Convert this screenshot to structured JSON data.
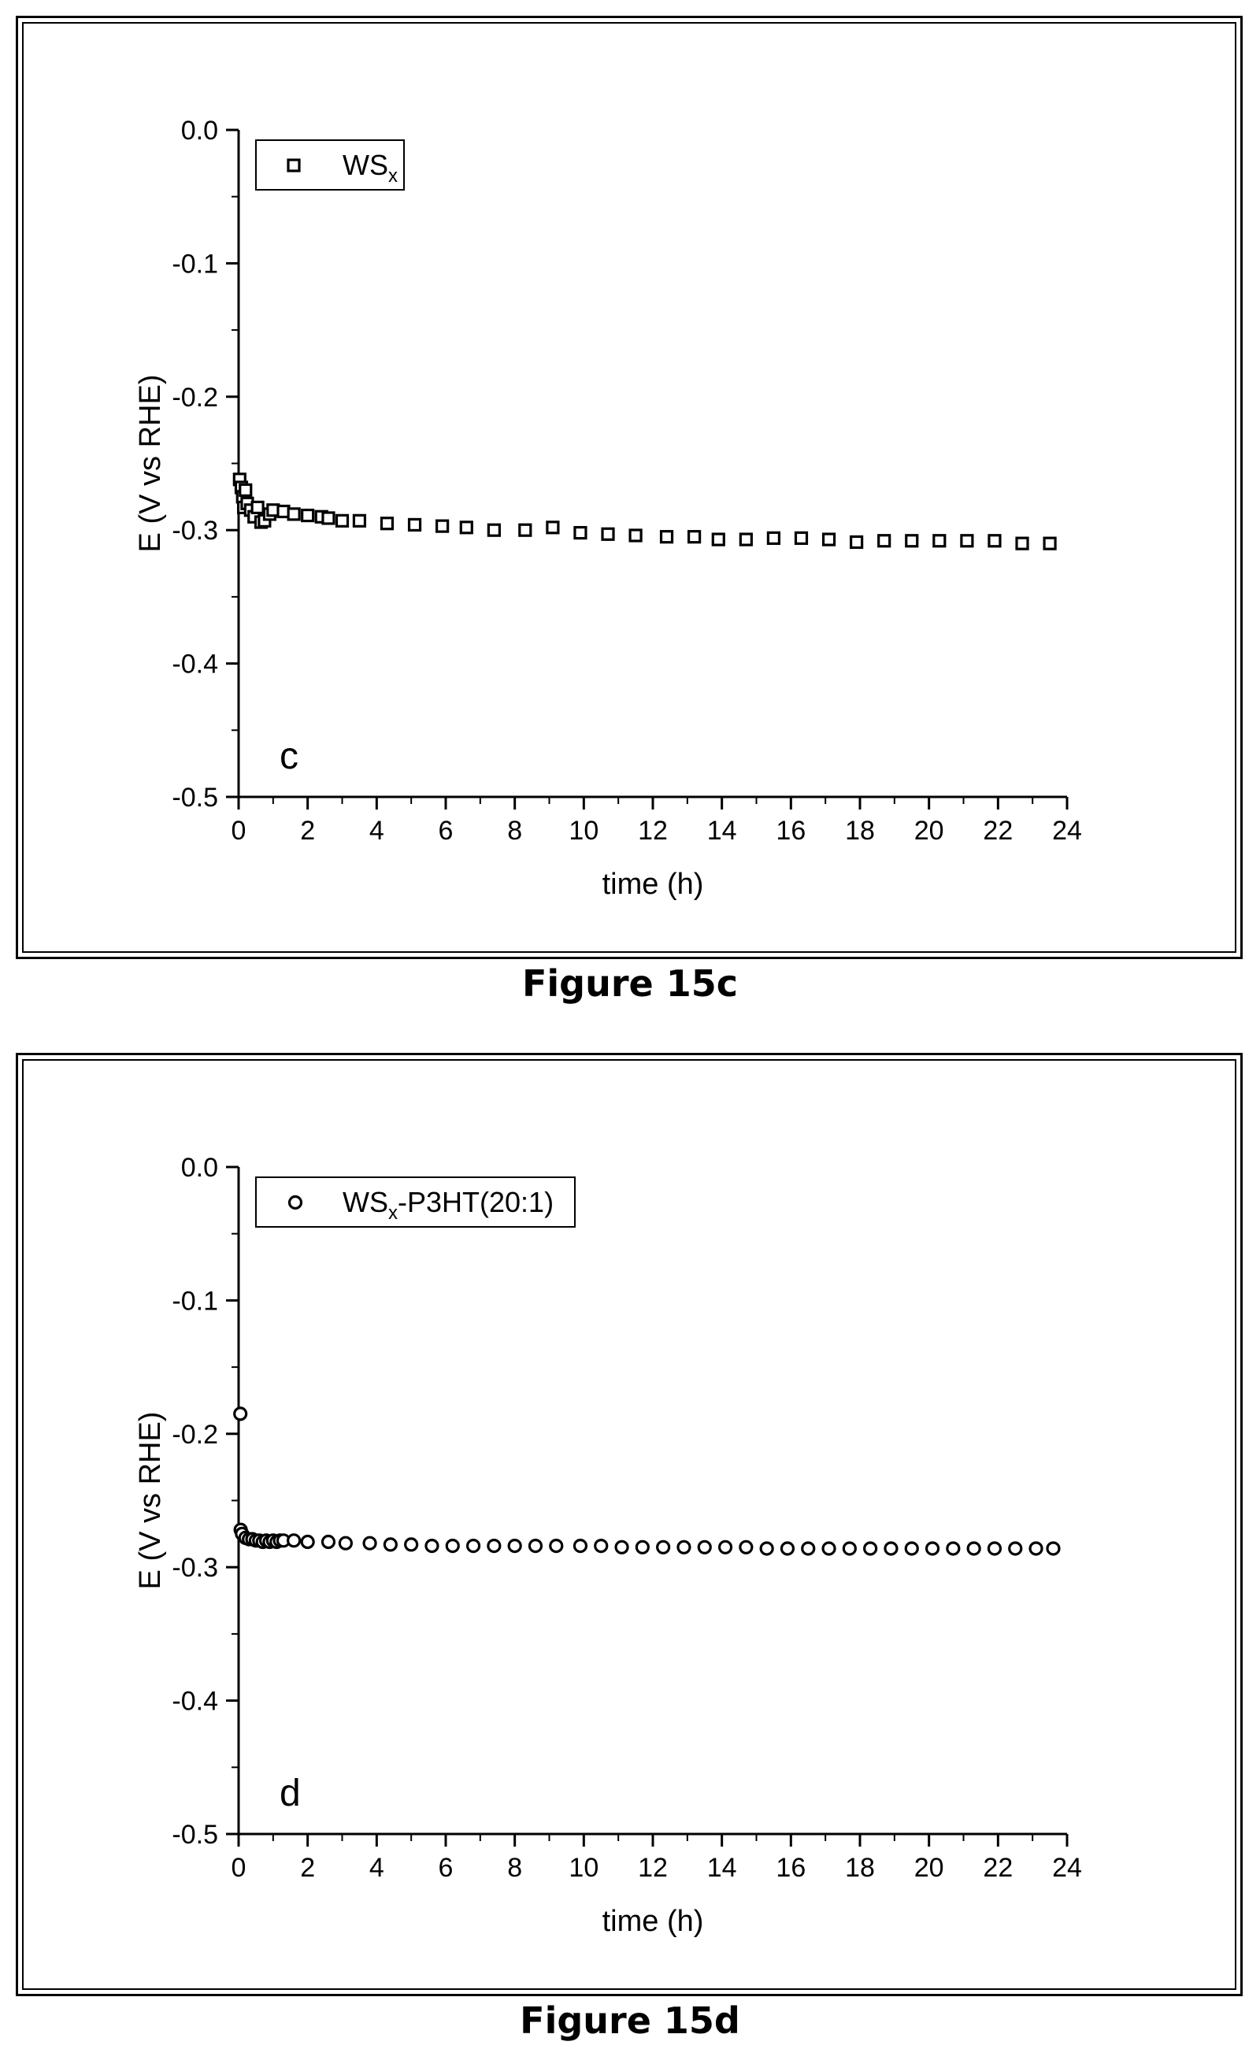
{
  "figures": [
    {
      "caption": "Figure 15c",
      "chart_data": {
        "type": "scatter",
        "panel_label": "c",
        "xlabel": "time (h)",
        "ylabel": "E (V vs RHE)",
        "xlim": [
          0,
          24
        ],
        "ylim": [
          -0.5,
          0.0
        ],
        "xticks": [
          "0",
          "2",
          "4",
          "6",
          "8",
          "10",
          "12",
          "14",
          "16",
          "18",
          "20",
          "22",
          "24"
        ],
        "yticks": [
          "0.0",
          "-0.1",
          "-0.2",
          "-0.3",
          "-0.4",
          "-0.5"
        ],
        "legend_position": "top-left",
        "series": [
          {
            "name": "WSx",
            "name_main": "WS",
            "name_sub": "x",
            "marker": "square",
            "points": [
              [
                0.03,
                -0.262
              ],
              [
                0.08,
                -0.268
              ],
              [
                0.12,
                -0.275
              ],
              [
                0.15,
                -0.283
              ],
              [
                0.2,
                -0.27
              ],
              [
                0.25,
                -0.28
              ],
              [
                0.35,
                -0.285
              ],
              [
                0.45,
                -0.29
              ],
              [
                0.55,
                -0.283
              ],
              [
                0.65,
                -0.294
              ],
              [
                0.75,
                -0.293
              ],
              [
                0.9,
                -0.288
              ],
              [
                1.0,
                -0.285
              ],
              [
                1.3,
                -0.286
              ],
              [
                1.6,
                -0.288
              ],
              [
                2.0,
                -0.289
              ],
              [
                2.4,
                -0.29
              ],
              [
                2.6,
                -0.291
              ],
              [
                3.0,
                -0.293
              ],
              [
                3.5,
                -0.293
              ],
              [
                4.3,
                -0.295
              ],
              [
                5.1,
                -0.296
              ],
              [
                5.9,
                -0.297
              ],
              [
                6.6,
                -0.298
              ],
              [
                7.4,
                -0.3
              ],
              [
                8.3,
                -0.3
              ],
              [
                9.1,
                -0.298
              ],
              [
                9.9,
                -0.302
              ],
              [
                10.7,
                -0.303
              ],
              [
                11.5,
                -0.304
              ],
              [
                12.4,
                -0.305
              ],
              [
                13.2,
                -0.305
              ],
              [
                13.9,
                -0.307
              ],
              [
                14.7,
                -0.307
              ],
              [
                15.5,
                -0.306
              ],
              [
                16.3,
                -0.306
              ],
              [
                17.1,
                -0.307
              ],
              [
                17.9,
                -0.309
              ],
              [
                18.7,
                -0.308
              ],
              [
                19.5,
                -0.308
              ],
              [
                20.3,
                -0.308
              ],
              [
                21.1,
                -0.308
              ],
              [
                21.9,
                -0.308
              ],
              [
                22.7,
                -0.31
              ],
              [
                23.5,
                -0.31
              ]
            ]
          }
        ]
      }
    },
    {
      "caption": "Figure 15d",
      "chart_data": {
        "type": "scatter",
        "panel_label": "d",
        "xlabel": "time (h)",
        "ylabel": "E (V vs RHE)",
        "xlim": [
          0,
          24
        ],
        "ylim": [
          -0.5,
          0.0
        ],
        "xticks": [
          "0",
          "2",
          "4",
          "6",
          "8",
          "10",
          "12",
          "14",
          "16",
          "18",
          "20",
          "22",
          "24"
        ],
        "yticks": [
          "0.0",
          "-0.1",
          "-0.2",
          "-0.3",
          "-0.4",
          "-0.5"
        ],
        "legend_position": "top-left",
        "series": [
          {
            "name": "WSx-P3HT(20:1)",
            "name_main": "WS",
            "name_sub": "x",
            "name_tail": "-P3HT(20:1)",
            "marker": "circle",
            "points": [
              [
                0.05,
                -0.185
              ],
              [
                0.06,
                -0.272
              ],
              [
                0.1,
                -0.275
              ],
              [
                0.2,
                -0.278
              ],
              [
                0.3,
                -0.279
              ],
              [
                0.4,
                -0.279
              ],
              [
                0.5,
                -0.28
              ],
              [
                0.6,
                -0.28
              ],
              [
                0.7,
                -0.281
              ],
              [
                0.8,
                -0.28
              ],
              [
                0.9,
                -0.281
              ],
              [
                1.0,
                -0.28
              ],
              [
                1.1,
                -0.281
              ],
              [
                1.2,
                -0.28
              ],
              [
                1.3,
                -0.28
              ],
              [
                1.6,
                -0.28
              ],
              [
                2.0,
                -0.281
              ],
              [
                2.6,
                -0.281
              ],
              [
                3.1,
                -0.282
              ],
              [
                3.8,
                -0.282
              ],
              [
                4.4,
                -0.283
              ],
              [
                5.0,
                -0.283
              ],
              [
                5.6,
                -0.284
              ],
              [
                6.2,
                -0.284
              ],
              [
                6.8,
                -0.284
              ],
              [
                7.4,
                -0.284
              ],
              [
                8.0,
                -0.284
              ],
              [
                8.6,
                -0.284
              ],
              [
                9.2,
                -0.284
              ],
              [
                9.9,
                -0.284
              ],
              [
                10.5,
                -0.284
              ],
              [
                11.1,
                -0.285
              ],
              [
                11.7,
                -0.285
              ],
              [
                12.3,
                -0.285
              ],
              [
                12.9,
                -0.285
              ],
              [
                13.5,
                -0.285
              ],
              [
                14.1,
                -0.285
              ],
              [
                14.7,
                -0.285
              ],
              [
                15.3,
                -0.286
              ],
              [
                15.9,
                -0.286
              ],
              [
                16.5,
                -0.286
              ],
              [
                17.1,
                -0.286
              ],
              [
                17.7,
                -0.286
              ],
              [
                18.3,
                -0.286
              ],
              [
                18.9,
                -0.286
              ],
              [
                19.5,
                -0.286
              ],
              [
                20.1,
                -0.286
              ],
              [
                20.7,
                -0.286
              ],
              [
                21.3,
                -0.286
              ],
              [
                21.9,
                -0.286
              ],
              [
                22.5,
                -0.286
              ],
              [
                23.1,
                -0.286
              ],
              [
                23.6,
                -0.286
              ]
            ]
          }
        ]
      }
    }
  ]
}
